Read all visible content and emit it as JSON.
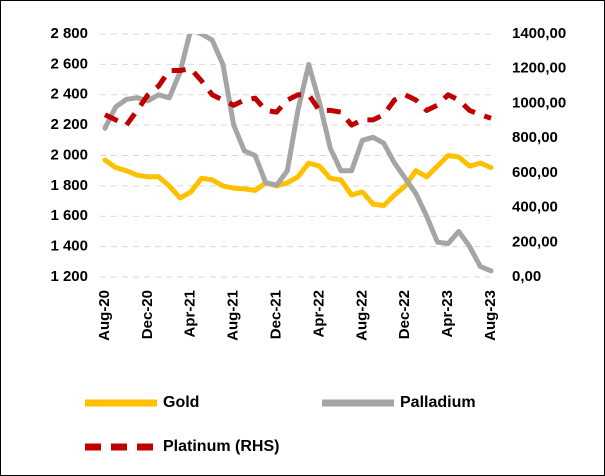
{
  "chart_data": {
    "type": "line",
    "categories": [
      "Aug-20",
      null,
      null,
      null,
      "Dec-20",
      null,
      null,
      null,
      "Apr-21",
      null,
      null,
      null,
      "Aug-21",
      null,
      null,
      null,
      "Dec-21",
      null,
      null,
      null,
      "Apr-22",
      null,
      null,
      null,
      "Aug-22",
      null,
      null,
      null,
      "Dec-22",
      null,
      null,
      null,
      "Apr-23",
      null,
      null,
      null,
      "Aug-23"
    ],
    "series": [
      {
        "name": "Gold",
        "color": "#ffc000",
        "values": [
          1970,
          1920,
          1900,
          1870,
          1860,
          1860,
          1800,
          1720,
          1760,
          1850,
          1840,
          1800,
          1785,
          1780,
          1770,
          1820,
          1800,
          1820,
          1860,
          1950,
          1930,
          1850,
          1840,
          1740,
          1760,
          1680,
          1670,
          1740,
          1800,
          1900,
          1860,
          1930,
          2000,
          1990,
          1930,
          1950,
          1920
        ]
      },
      {
        "name": "Palladium",
        "color": "#a5a5a5",
        "values": [
          2180,
          2320,
          2370,
          2380,
          2360,
          2400,
          2380,
          2550,
          2830,
          2800,
          2760,
          2600,
          2200,
          2030,
          2000,
          1820,
          1805,
          1900,
          2300,
          2600,
          2350,
          2050,
          1900,
          1900,
          2100,
          2120,
          2080,
          1950,
          1850,
          1750,
          1600,
          1430,
          1420,
          1500,
          1400,
          1270,
          1240
        ]
      },
      {
        "name": "Platinum (RHS)",
        "color": "#c00000",
        "axis": "y2",
        "dashed": true,
        "values": [
          935,
          905,
          875,
          960,
          1050,
          1100,
          1190,
          1190,
          1200,
          1130,
          1050,
          1020,
          990,
          1020,
          1030,
          960,
          950,
          1020,
          1050,
          1050,
          960,
          960,
          950,
          875,
          905,
          905,
          935,
          1020,
          1050,
          1020,
          960,
          990,
          1050,
          1020,
          960,
          935,
          915
        ]
      }
    ],
    "ylim": [
      1200,
      2800
    ],
    "yticks": [
      {
        "value": 1200,
        "label": "1 200"
      },
      {
        "value": 1400,
        "label": "1 400"
      },
      {
        "value": 1600,
        "label": "1 600"
      },
      {
        "value": 1800,
        "label": "1 800"
      },
      {
        "value": 2000,
        "label": "2 000"
      },
      {
        "value": 2200,
        "label": "2 200"
      },
      {
        "value": 2400,
        "label": "2 400"
      },
      {
        "value": 2600,
        "label": "2 600"
      },
      {
        "value": 2800,
        "label": "2 800"
      }
    ],
    "y2lim": [
      0,
      1400
    ],
    "y2ticks": [
      {
        "value": 0,
        "label": "0,00"
      },
      {
        "value": 200,
        "label": "200,00"
      },
      {
        "value": 400,
        "label": "400,00"
      },
      {
        "value": 600,
        "label": "600,00"
      },
      {
        "value": 800,
        "label": "800,00"
      },
      {
        "value": 1000,
        "label": "1000,00"
      },
      {
        "value": 1200,
        "label": "1200,00"
      },
      {
        "value": 1400,
        "label": "1400,00"
      }
    ],
    "grid": true,
    "legend": "bottom"
  }
}
